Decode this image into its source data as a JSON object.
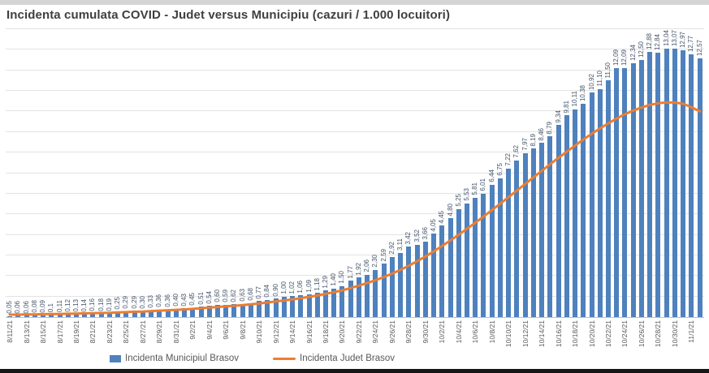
{
  "title": "Incidenta cumulata COVID - Judet versus Municipiu (cazuri / 1.000 locuitori)",
  "colors": {
    "bar": "#4e81bd",
    "line": "#ed7d31",
    "bar_label": "#44546a",
    "axis_label": "#595959",
    "title": "#3f3f3f",
    "gridline": "#e3e3e3"
  },
  "chart_data": {
    "type": "bar",
    "title": "Incidenta cumulata COVID - Judet versus Municipiu (cazuri / 1.000 locuitori)",
    "xlabel": "",
    "ylabel": "",
    "ylim": [
      0,
      14
    ],
    "gridline_step": 1,
    "grid": true,
    "legend_position": "bottom",
    "x_tick_every": 2,
    "x": [
      "8/11/21",
      "8/12/21",
      "8/13/21",
      "8/14/21",
      "8/15/21",
      "8/16/21",
      "8/17/21",
      "8/18/21",
      "8/19/21",
      "8/20/21",
      "8/21/21",
      "8/22/21",
      "8/23/21",
      "8/24/21",
      "8/25/21",
      "8/26/21",
      "8/27/21",
      "8/28/21",
      "8/29/21",
      "8/30/21",
      "8/31/21",
      "9/1/21",
      "9/2/21",
      "9/3/21",
      "9/4/21",
      "9/5/21",
      "9/6/21",
      "9/7/21",
      "9/8/21",
      "9/9/21",
      "9/10/21",
      "9/11/21",
      "9/12/21",
      "9/13/21",
      "9/14/21",
      "9/15/21",
      "9/16/21",
      "9/17/21",
      "9/18/21",
      "9/19/21",
      "9/20/21",
      "9/21/21",
      "9/22/21",
      "9/23/21",
      "9/24/21",
      "9/25/21",
      "9/26/21",
      "9/27/21",
      "9/28/21",
      "9/29/21",
      "9/30/21",
      "10/1/21",
      "10/2/21",
      "10/3/21",
      "10/4/21",
      "10/5/21",
      "10/6/21",
      "10/7/21",
      "10/8/21",
      "10/9/21",
      "10/10/21",
      "10/11/21",
      "10/12/21",
      "10/13/21",
      "10/14/21",
      "10/15/21",
      "10/16/21",
      "10/17/21",
      "10/18/21",
      "10/19/21",
      "10/20/21",
      "10/21/21",
      "10/22/21",
      "10/23/21",
      "10/24/21",
      "10/25/21",
      "10/26/21",
      "10/27/21",
      "10/28/21",
      "10/29/21",
      "10/30/21",
      "10/31/21",
      "11/1/21",
      "11/2/21"
    ],
    "series": [
      {
        "name": "Incidenta Municipiul Brasov",
        "type": "bar",
        "color": "#4e81bd",
        "values": [
          0.05,
          0.06,
          0.06,
          0.08,
          0.09,
          0.1,
          0.11,
          0.12,
          0.13,
          0.14,
          0.16,
          0.18,
          0.19,
          0.25,
          0.29,
          0.29,
          0.3,
          0.33,
          0.36,
          0.36,
          0.4,
          0.43,
          0.45,
          0.51,
          0.54,
          0.6,
          0.59,
          0.62,
          0.63,
          0.68,
          0.77,
          0.84,
          0.9,
          1.0,
          1.02,
          1.06,
          1.09,
          1.18,
          1.29,
          1.4,
          1.5,
          1.77,
          1.92,
          2.06,
          2.3,
          2.59,
          2.92,
          3.11,
          3.42,
          3.52,
          3.66,
          4.05,
          4.45,
          4.8,
          5.25,
          5.53,
          5.81,
          6.01,
          6.44,
          6.75,
          7.22,
          7.62,
          7.97,
          8.19,
          8.46,
          8.79,
          9.34,
          9.81,
          10.11,
          10.38,
          10.92,
          11.1,
          11.5,
          12.09,
          12.09,
          12.34,
          12.5,
          12.88,
          12.84,
          13.04,
          13.07,
          12.97,
          12.77,
          12.57
        ],
        "labels": [
          "0,05",
          "0,06",
          "0,06",
          "0,08",
          "0,09",
          "0,1",
          "0,11",
          "0,12",
          "0,13",
          "0,14",
          "0,16",
          "0,18",
          "0,19",
          "0,25",
          "0,29",
          "0,29",
          "0,30",
          "0,33",
          "0,36",
          "0,36",
          "0,40",
          "0,43",
          "0,45",
          "0,51",
          "0,54",
          "0,60",
          "0,59",
          "0,62",
          "0,63",
          "0,68",
          "0,77",
          "0,84",
          "0,90",
          "1,00",
          "1,02",
          "1,06",
          "1,09",
          "1,18",
          "1,29",
          "1,40",
          "1,50",
          "1,77",
          "1,92",
          "2,06",
          "2,30",
          "2,59",
          "2,92",
          "3,11",
          "3,42",
          "3,52",
          "3,66",
          "4,05",
          "4,45",
          "4,80",
          "5,25",
          "5,53",
          "5,81",
          "6,01",
          "6,44",
          "6,75",
          "7,22",
          "7,62",
          "7,97",
          "8,19",
          "8,46",
          "8,79",
          "9,34",
          "9,81",
          "10,11",
          "10,38",
          "10,92",
          "11,10",
          "11,50",
          "12,09",
          "12,09",
          "12,34",
          "12,50",
          "12,88",
          "12,84",
          "13,04",
          "13,07",
          "12,97",
          "12,77",
          "12,57"
        ]
      },
      {
        "name": "Incidenta Judet Brasov",
        "type": "line",
        "color": "#ed7d31",
        "values": [
          0.12,
          0.12,
          0.13,
          0.13,
          0.14,
          0.15,
          0.15,
          0.16,
          0.17,
          0.18,
          0.19,
          0.2,
          0.21,
          0.23,
          0.24,
          0.26,
          0.27,
          0.29,
          0.31,
          0.33,
          0.35,
          0.37,
          0.4,
          0.43,
          0.46,
          0.49,
          0.52,
          0.55,
          0.58,
          0.62,
          0.66,
          0.71,
          0.76,
          0.81,
          0.86,
          0.92,
          0.98,
          1.05,
          1.13,
          1.21,
          1.3,
          1.41,
          1.53,
          1.66,
          1.8,
          1.95,
          2.12,
          2.3,
          2.5,
          2.72,
          2.95,
          3.2,
          3.46,
          3.73,
          4.01,
          4.3,
          4.6,
          4.9,
          5.21,
          5.52,
          5.84,
          6.16,
          6.48,
          6.8,
          7.12,
          7.44,
          7.75,
          8.05,
          8.35,
          8.64,
          8.92,
          9.18,
          9.43,
          9.66,
          9.87,
          10.05,
          10.2,
          10.32,
          10.4,
          10.44,
          10.43,
          10.37,
          10.2,
          10.0
        ]
      }
    ]
  }
}
